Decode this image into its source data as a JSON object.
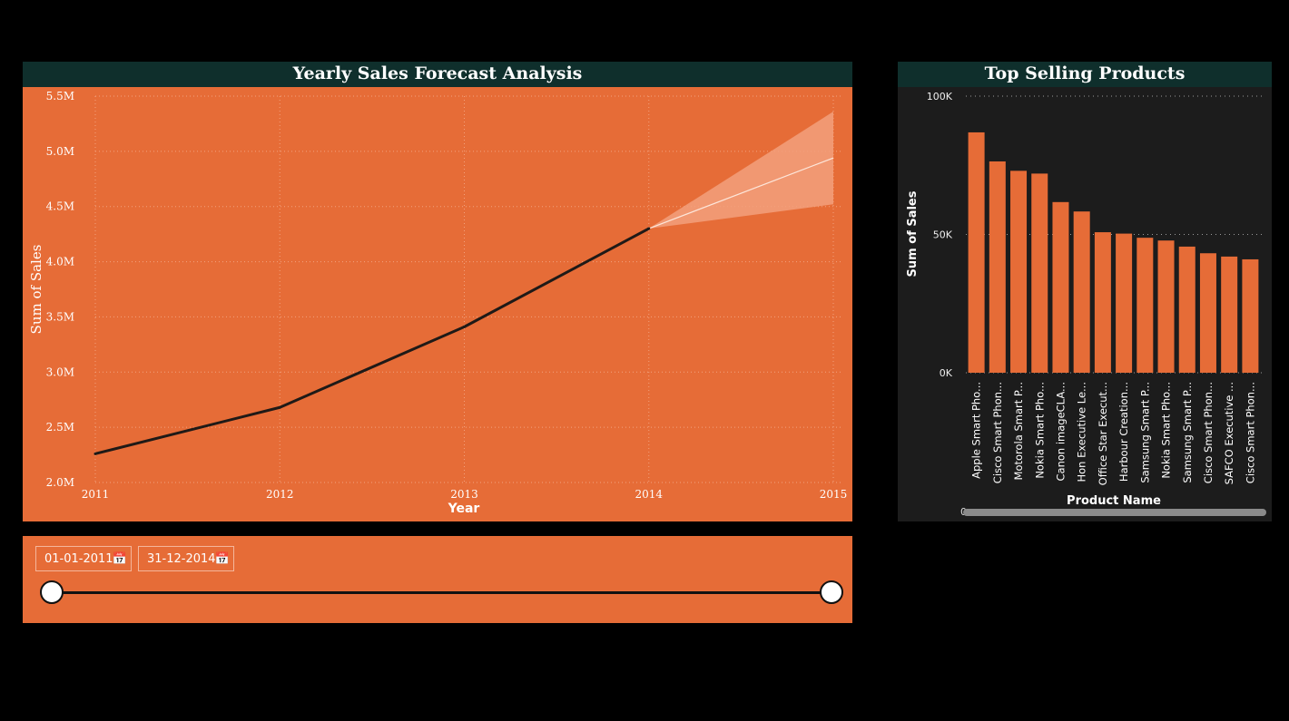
{
  "forecast": {
    "title": "Yearly Sales Forecast Analysis",
    "colors": {
      "background": "#e66c37",
      "header": "#0f2f2c",
      "line": "#1f1a17",
      "forecast_band": "#f2a07d",
      "forecast_line": "#fde6da"
    }
  },
  "products": {
    "title": "Top Selling Products",
    "colors": {
      "background": "#1c1c1c",
      "bar": "#e66c37"
    }
  },
  "slicer": {
    "start_date": "01-01-2011",
    "end_date": "31-12-2014",
    "calendar_icon": "calendar-icon"
  },
  "scrollbar": {
    "label": "0"
  },
  "chart_data": [
    {
      "type": "line",
      "title": "Yearly Sales Forecast Analysis",
      "xlabel": "Year",
      "ylabel": "Sum of Sales",
      "x": [
        "2011",
        "2012",
        "2013",
        "2014"
      ],
      "series": [
        {
          "values": [
            2260000,
            2680000,
            3410000,
            4300000
          ]
        }
      ],
      "forecast": {
        "x": [
          "2014",
          "2015"
        ],
        "values": [
          4300000,
          4940000
        ],
        "upper": [
          4300000,
          5360000
        ],
        "lower": [
          4300000,
          4520000
        ]
      },
      "x_ticks": [
        "2011",
        "2012",
        "2013",
        "2014",
        "2015"
      ],
      "y_ticks": [
        "2.0M",
        "2.5M",
        "3.0M",
        "3.5M",
        "4.0M",
        "4.5M",
        "5.0M",
        "5.5M"
      ],
      "ylim": [
        2000000,
        5500000
      ],
      "grid": true
    },
    {
      "type": "bar",
      "title": "Top Selling Products",
      "xlabel": "Product Name",
      "ylabel": "Sum of Sales",
      "categories": [
        "Apple Smart Pho...",
        "Cisco Smart Phon...",
        "Motorola Smart P...",
        "Nokia Smart Pho...",
        "Canon imageCLA...",
        "Hon Executive Le...",
        "Office Star Execut...",
        "Harbour Creation...",
        "Samsung Smart P...",
        "Nokia Smart Pho...",
        "Samsung Smart P...",
        "Cisco Smart Phon...",
        "SAFCO Executive ...",
        "Cisco Smart Phon..."
      ],
      "values": [
        86900,
        76400,
        73000,
        72000,
        61700,
        58300,
        50800,
        50300,
        48800,
        47800,
        45600,
        43200,
        42000,
        41000
      ],
      "y_ticks": [
        "0K",
        "50K",
        "100K"
      ],
      "ylim": [
        0,
        100000
      ],
      "grid": true
    }
  ]
}
